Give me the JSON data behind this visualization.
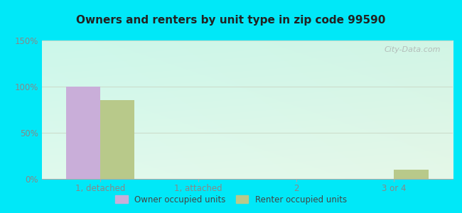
{
  "title": "Owners and renters by unit type in zip code 99590",
  "categories": [
    "1, detached",
    "1, attached",
    "2",
    "3 or 4"
  ],
  "owner_values": [
    100,
    0,
    0,
    0
  ],
  "renter_values": [
    85,
    0,
    0,
    10
  ],
  "owner_color": "#c9aed9",
  "renter_color": "#b8c98a",
  "ylim": [
    0,
    150
  ],
  "yticks": [
    0,
    50,
    100,
    150
  ],
  "ytick_labels": [
    "0%",
    "50%",
    "100%",
    "150%"
  ],
  "bg_topleft": [
    0.82,
    0.97,
    0.92
  ],
  "bg_topright": [
    0.85,
    0.95,
    0.88
  ],
  "bg_bottomleft": [
    0.9,
    0.98,
    0.94
  ],
  "bg_bottomright": [
    0.87,
    0.96,
    0.9
  ],
  "outer_bg": "#00e8f8",
  "bar_width": 0.35,
  "legend_labels": [
    "Owner occupied units",
    "Renter occupied units"
  ],
  "watermark": "City-Data.com",
  "grid_color": "#ccddcc",
  "tick_color": "#888888",
  "title_color": "#222222"
}
